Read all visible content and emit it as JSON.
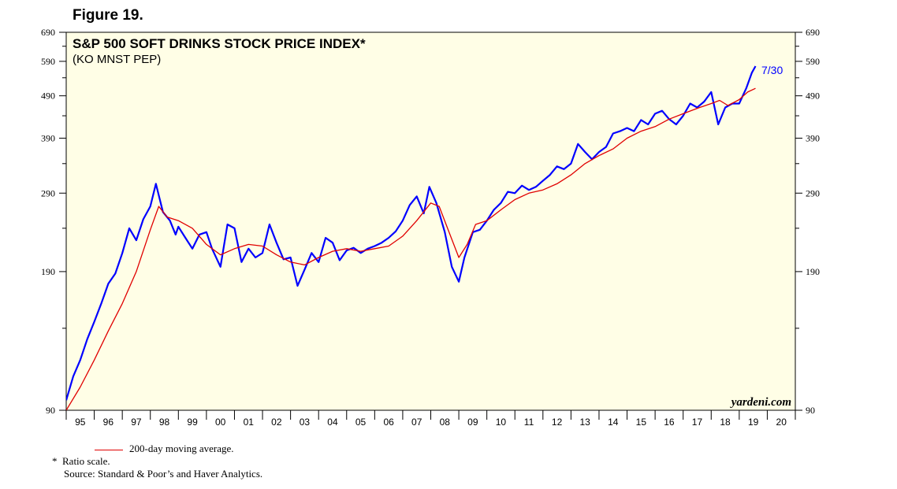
{
  "figure_label": "Figure 19.",
  "footnotes": {
    "legend_label": "200-day moving average.",
    "ratio_note_marker": "*",
    "ratio_note": "Ratio scale.",
    "source": "Source: Standard & Poor’s and Haver Analytics."
  },
  "colors": {
    "background": "#fffee6",
    "index": "#0000ff",
    "moving_average": "#e00000"
  },
  "chart_data": {
    "type": "line",
    "title": "S&P 500 SOFT DRINKS STOCK PRICE INDEX*",
    "subtitle": "(KO MNST PEP)",
    "watermark": "yardeni.com",
    "end_label": "7/30",
    "y_scale": "log",
    "ylim": [
      90,
      690
    ],
    "y_ticks": [
      90,
      190,
      290,
      390,
      490,
      590,
      690
    ],
    "y_tick_labels": [
      "90",
      "190",
      "290",
      "390",
      "490",
      "590",
      "690"
    ],
    "x_range": [
      1995,
      2021
    ],
    "x_tick_labels": [
      "95",
      "96",
      "97",
      "98",
      "99",
      "00",
      "01",
      "02",
      "03",
      "04",
      "05",
      "06",
      "07",
      "08",
      "09",
      "10",
      "11",
      "12",
      "13",
      "14",
      "15",
      "16",
      "17",
      "18",
      "19",
      "20"
    ],
    "series": [
      {
        "name": "S&P 500 Soft Drinks Stock Price Index",
        "x": [
          1995.0,
          1995.25,
          1995.5,
          1995.75,
          1996.0,
          1996.25,
          1996.5,
          1996.75,
          1997.0,
          1997.25,
          1997.5,
          1997.75,
          1998.0,
          1998.2,
          1998.45,
          1998.7,
          1998.9,
          1999.0,
          1999.25,
          1999.5,
          1999.75,
          2000.0,
          2000.2,
          2000.5,
          2000.75,
          2001.0,
          2001.25,
          2001.5,
          2001.75,
          2002.0,
          2002.25,
          2002.5,
          2002.75,
          2003.0,
          2003.25,
          2003.5,
          2003.75,
          2004.0,
          2004.25,
          2004.5,
          2004.75,
          2005.0,
          2005.25,
          2005.5,
          2005.75,
          2006.0,
          2006.25,
          2006.5,
          2006.75,
          2007.0,
          2007.25,
          2007.5,
          2007.75,
          2007.95,
          2008.2,
          2008.5,
          2008.75,
          2009.0,
          2009.2,
          2009.5,
          2009.75,
          2010.0,
          2010.25,
          2010.5,
          2010.75,
          2011.0,
          2011.25,
          2011.5,
          2011.75,
          2012.0,
          2012.25,
          2012.5,
          2012.75,
          2013.0,
          2013.25,
          2013.5,
          2013.75,
          2014.0,
          2014.25,
          2014.5,
          2014.75,
          2015.0,
          2015.25,
          2015.5,
          2015.75,
          2016.0,
          2016.25,
          2016.5,
          2016.75,
          2017.0,
          2017.25,
          2017.5,
          2017.75,
          2018.0,
          2018.25,
          2018.5,
          2018.75,
          2019.0,
          2019.25,
          2019.45,
          2019.58
        ],
        "values": [
          95,
          108,
          118,
          132,
          145,
          160,
          178,
          188,
          210,
          240,
          225,
          252,
          270,
          305,
          262,
          250,
          232,
          242,
          228,
          215,
          232,
          235,
          215,
          195,
          245,
          240,
          200,
          215,
          205,
          210,
          245,
          222,
          203,
          205,
          176,
          192,
          210,
          200,
          228,
          222,
          202,
          213,
          216,
          210,
          215,
          218,
          222,
          228,
          236,
          250,
          272,
          285,
          260,
          300,
          275,
          235,
          195,
          180,
          205,
          235,
          238,
          250,
          265,
          275,
          292,
          290,
          302,
          295,
          300,
          310,
          320,
          335,
          330,
          340,
          378,
          362,
          348,
          362,
          372,
          400,
          405,
          412,
          405,
          430,
          420,
          445,
          452,
          432,
          420,
          440,
          470,
          460,
          475,
          500,
          420,
          460,
          470,
          470,
          510,
          555,
          575
        ]
      },
      {
        "name": "200-day moving average",
        "x": [
          1995.0,
          1995.5,
          1996.0,
          1996.5,
          1997.0,
          1997.5,
          1998.0,
          1998.3,
          1998.6,
          1999.0,
          1999.5,
          2000.0,
          2000.5,
          2001.0,
          2001.5,
          2002.0,
          2002.5,
          2003.0,
          2003.5,
          2004.0,
          2004.5,
          2005.0,
          2005.5,
          2006.0,
          2006.5,
          2007.0,
          2007.5,
          2008.0,
          2008.3,
          2008.6,
          2009.0,
          2009.3,
          2009.6,
          2010.0,
          2010.5,
          2011.0,
          2011.5,
          2012.0,
          2012.5,
          2013.0,
          2013.5,
          2014.0,
          2014.5,
          2015.0,
          2015.5,
          2016.0,
          2016.5,
          2017.0,
          2017.5,
          2018.0,
          2018.3,
          2018.6,
          2019.0,
          2019.3,
          2019.58
        ],
        "values": [
          90,
          102,
          118,
          138,
          160,
          190,
          238,
          270,
          255,
          250,
          240,
          220,
          208,
          215,
          220,
          218,
          208,
          200,
          197,
          205,
          212,
          215,
          212,
          215,
          218,
          230,
          250,
          275,
          270,
          240,
          205,
          220,
          245,
          250,
          265,
          280,
          290,
          295,
          305,
          320,
          340,
          355,
          368,
          390,
          405,
          415,
          432,
          445,
          458,
          470,
          478,
          465,
          480,
          500,
          510
        ]
      }
    ]
  }
}
